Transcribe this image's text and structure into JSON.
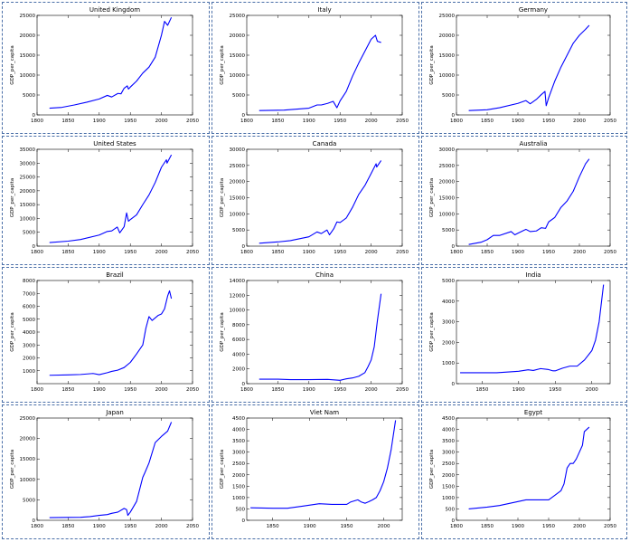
{
  "chart_data": [
    {
      "type": "line",
      "title": "United Kingdom",
      "ylabel": "GDP_per_capita",
      "xlim": [
        1800,
        2050
      ],
      "ylim": [
        0,
        25000
      ],
      "xticks": [
        1800,
        1850,
        1900,
        1950,
        2000,
        2050
      ],
      "yticks": [
        0,
        5000,
        10000,
        15000,
        20000,
        25000
      ],
      "series": [
        {
          "x": [
            1820,
            1840,
            1860,
            1880,
            1900,
            1913,
            1920,
            1930,
            1935,
            1940,
            1945,
            1947,
            1950,
            1960,
            1970,
            1980,
            1990,
            2000,
            2005,
            2010,
            2016
          ],
          "values": [
            1700,
            1900,
            2500,
            3200,
            4000,
            4900,
            4500,
            5400,
            5300,
            6700,
            7300,
            6500,
            7000,
            8500,
            10500,
            12000,
            14500,
            20000,
            23500,
            22500,
            24500
          ]
        }
      ]
    },
    {
      "type": "line",
      "title": "Italy",
      "ylabel": "GDP_per_capita",
      "xlim": [
        1800,
        2050
      ],
      "ylim": [
        0,
        25000
      ],
      "xticks": [
        1800,
        1850,
        1900,
        1950,
        2000,
        2050
      ],
      "yticks": [
        0,
        5000,
        10000,
        15000,
        20000,
        25000
      ],
      "series": [
        {
          "x": [
            1820,
            1860,
            1900,
            1913,
            1920,
            1930,
            1939,
            1945,
            1950,
            1960,
            1970,
            1980,
            1990,
            2000,
            2007,
            2010,
            2016
          ],
          "values": [
            1100,
            1200,
            1700,
            2500,
            2500,
            2900,
            3400,
            1800,
            3500,
            5900,
            9700,
            13000,
            16000,
            19000,
            20000,
            18500,
            18200
          ]
        }
      ]
    },
    {
      "type": "line",
      "title": "Germany",
      "ylabel": "GDP_per_capita",
      "xlim": [
        1800,
        2050
      ],
      "ylim": [
        0,
        25000
      ],
      "xticks": [
        1800,
        1850,
        1900,
        1950,
        2000,
        2050
      ],
      "yticks": [
        0,
        5000,
        10000,
        15000,
        20000,
        25000
      ],
      "series": [
        {
          "x": [
            1820,
            1850,
            1870,
            1900,
            1913,
            1920,
            1930,
            1938,
            1944,
            1946,
            1950,
            1960,
            1970,
            1980,
            1990,
            2000,
            2010,
            2016
          ],
          "values": [
            1100,
            1300,
            1800,
            2900,
            3600,
            2800,
            3900,
            5100,
            5900,
            2300,
            4300,
            8500,
            12000,
            15000,
            18000,
            20000,
            21500,
            22500
          ]
        }
      ]
    },
    {
      "type": "line",
      "title": "United States",
      "ylabel": "GDP_per_capita",
      "xlim": [
        1800,
        2050
      ],
      "ylim": [
        0,
        35000
      ],
      "xticks": [
        1800,
        1850,
        1900,
        1950,
        2000,
        2050
      ],
      "yticks": [
        0,
        5000,
        10000,
        15000,
        20000,
        25000,
        30000,
        35000
      ],
      "series": [
        {
          "x": [
            1820,
            1850,
            1870,
            1900,
            1913,
            1920,
            1929,
            1933,
            1940,
            1944,
            1947,
            1950,
            1960,
            1970,
            1980,
            1990,
            2000,
            2008,
            2009,
            2016
          ],
          "values": [
            1300,
            1800,
            2400,
            4000,
            5300,
            5500,
            6900,
            4800,
            7000,
            12000,
            9000,
            9600,
            11300,
            15000,
            18500,
            23000,
            28500,
            31200,
            30000,
            33000
          ]
        }
      ]
    },
    {
      "type": "line",
      "title": "Canada",
      "ylabel": "GDP_per_capita",
      "xlim": [
        1800,
        2050
      ],
      "ylim": [
        0,
        30000
      ],
      "xticks": [
        1800,
        1850,
        1900,
        1950,
        2000,
        2050
      ],
      "yticks": [
        0,
        5000,
        10000,
        15000,
        20000,
        25000,
        30000
      ],
      "series": [
        {
          "x": [
            1820,
            1850,
            1870,
            1900,
            1913,
            1920,
            1929,
            1933,
            1940,
            1945,
            1950,
            1960,
            1970,
            1980,
            1990,
            2000,
            2008,
            2009,
            2016
          ],
          "values": [
            900,
            1300,
            1700,
            2900,
            4400,
            3900,
            5000,
            3500,
            5400,
            7500,
            7300,
            8700,
            12000,
            16000,
            18800,
            22500,
            25500,
            24500,
            26500
          ]
        }
      ]
    },
    {
      "type": "line",
      "title": "Australia",
      "ylabel": "GDP_per_capita",
      "xlim": [
        1800,
        2050
      ],
      "ylim": [
        0,
        30000
      ],
      "xticks": [
        1800,
        1850,
        1900,
        1950,
        2000,
        2050
      ],
      "yticks": [
        0,
        5000,
        10000,
        15000,
        20000,
        25000,
        30000
      ],
      "series": [
        {
          "x": [
            1820,
            1840,
            1850,
            1860,
            1870,
            1889,
            1895,
            1900,
            1913,
            1920,
            1930,
            1938,
            1945,
            1950,
            1960,
            1970,
            1980,
            1990,
            2000,
            2010,
            2016
          ],
          "values": [
            500,
            1200,
            2000,
            3300,
            3300,
            4500,
            3500,
            4000,
            5200,
            4500,
            4700,
            5700,
            5500,
            7500,
            8900,
            12000,
            14000,
            17000,
            21500,
            25500,
            27000
          ]
        }
      ]
    },
    {
      "type": "line",
      "title": "Brazil",
      "ylabel": "GDP_per_capita",
      "xlim": [
        1800,
        2050
      ],
      "ylim": [
        0,
        8000
      ],
      "xticks": [
        1800,
        1850,
        1900,
        1950,
        2000,
        2050
      ],
      "yticks": [
        1000,
        2000,
        3000,
        4000,
        5000,
        6000,
        7000,
        8000
      ],
      "series": [
        {
          "x": [
            1820,
            1850,
            1870,
            1890,
            1900,
            1913,
            1920,
            1930,
            1940,
            1950,
            1960,
            1970,
            1975,
            1980,
            1985,
            1990,
            1995,
            2000,
            2005,
            2010,
            2013,
            2016
          ],
          "values": [
            650,
            680,
            710,
            790,
            700,
            850,
            950,
            1050,
            1250,
            1650,
            2300,
            3000,
            4300,
            5200,
            4900,
            5100,
            5300,
            5400,
            5800,
            6800,
            7200,
            6600
          ]
        }
      ]
    },
    {
      "type": "line",
      "title": "China",
      "ylabel": "GDP_per_capita",
      "xlim": [
        1800,
        2050
      ],
      "ylim": [
        0,
        14000
      ],
      "xticks": [
        1800,
        1850,
        1900,
        1950,
        2000,
        2050
      ],
      "yticks": [
        0,
        2000,
        4000,
        6000,
        8000,
        10000,
        12000,
        14000
      ],
      "series": [
        {
          "x": [
            1820,
            1850,
            1870,
            1900,
            1913,
            1930,
            1950,
            1960,
            1970,
            1980,
            1990,
            1995,
            2000,
            2005,
            2010,
            2016
          ],
          "values": [
            600,
            600,
            550,
            550,
            560,
            580,
            450,
            650,
            770,
            1000,
            1500,
            2300,
            3200,
            5000,
            8500,
            12200
          ]
        }
      ]
    },
    {
      "type": "line",
      "title": "India",
      "ylabel": "GDP_per_capita",
      "xlim": [
        1815,
        2025
      ],
      "ylim": [
        0,
        5000
      ],
      "xticks": [
        1850,
        1900,
        1950,
        2000
      ],
      "yticks": [
        0,
        1000,
        2000,
        3000,
        4000,
        5000
      ],
      "series": [
        {
          "x": [
            1820,
            1850,
            1870,
            1884,
            1900,
            1913,
            1920,
            1930,
            1940,
            1947,
            1950,
            1960,
            1970,
            1980,
            1990,
            2000,
            2005,
            2010,
            2016
          ],
          "values": [
            530,
            530,
            530,
            560,
            600,
            670,
            640,
            730,
            690,
            620,
            620,
            750,
            850,
            850,
            1150,
            1600,
            2100,
            3000,
            4800
          ]
        }
      ]
    },
    {
      "type": "line",
      "title": "Japan",
      "ylabel": "GDP_per_capita",
      "xlim": [
        1800,
        2050
      ],
      "ylim": [
        0,
        25000
      ],
      "xticks": [
        1800,
        1850,
        1900,
        1950,
        2000,
        2050
      ],
      "yticks": [
        0,
        5000,
        10000,
        15000,
        20000,
        25000
      ],
      "series": [
        {
          "x": [
            1820,
            1850,
            1870,
            1885,
            1900,
            1913,
            1920,
            1930,
            1940,
            1944,
            1946,
            1950,
            1960,
            1970,
            1973,
            1980,
            1990,
            2000,
            2010,
            2016
          ],
          "values": [
            650,
            700,
            740,
            900,
            1200,
            1400,
            1700,
            2000,
            2900,
            2600,
            1200,
            2000,
            4600,
            10500,
            11500,
            14000,
            19000,
            20500,
            21800,
            24000
          ]
        }
      ]
    },
    {
      "type": "line",
      "title": "Viet Nam",
      "ylabel": "GDP_per_capita",
      "xlim": [
        1815,
        2025
      ],
      "ylim": [
        0,
        4500
      ],
      "xticks": [
        1850,
        1900,
        1950,
        2000
      ],
      "yticks": [
        0,
        500,
        1000,
        1500,
        2000,
        2500,
        3000,
        3500,
        4000,
        4500
      ],
      "series": [
        {
          "x": [
            1820,
            1850,
            1870,
            1890,
            1913,
            1930,
            1950,
            1955,
            1960,
            1965,
            1970,
            1975,
            1980,
            1985,
            1990,
            1995,
            2000,
            2005,
            2010,
            2016
          ],
          "values": [
            550,
            530,
            530,
            620,
            730,
            700,
            700,
            800,
            850,
            900,
            800,
            750,
            820,
            900,
            1000,
            1300,
            1700,
            2300,
            3100,
            4400
          ]
        }
      ]
    },
    {
      "type": "line",
      "title": "Egypt",
      "ylabel": "GDP_per_capita",
      "xlim": [
        1800,
        2050
      ],
      "ylim": [
        0,
        4500
      ],
      "xticks": [
        1800,
        1850,
        1900,
        1950,
        2000,
        2050
      ],
      "yticks": [
        0,
        500,
        1000,
        1500,
        2000,
        2500,
        3000,
        3500,
        4000,
        4500
      ],
      "series": [
        {
          "x": [
            1820,
            1850,
            1870,
            1913,
            1930,
            1940,
            1950,
            1960,
            1970,
            1975,
            1980,
            1985,
            1990,
            1995,
            2000,
            2005,
            2008,
            2010,
            2016
          ],
          "values": [
            500,
            580,
            650,
            900,
            900,
            900,
            900,
            1100,
            1300,
            1600,
            2300,
            2500,
            2500,
            2700,
            3000,
            3300,
            3900,
            3950,
            4100
          ]
        }
      ]
    }
  ]
}
